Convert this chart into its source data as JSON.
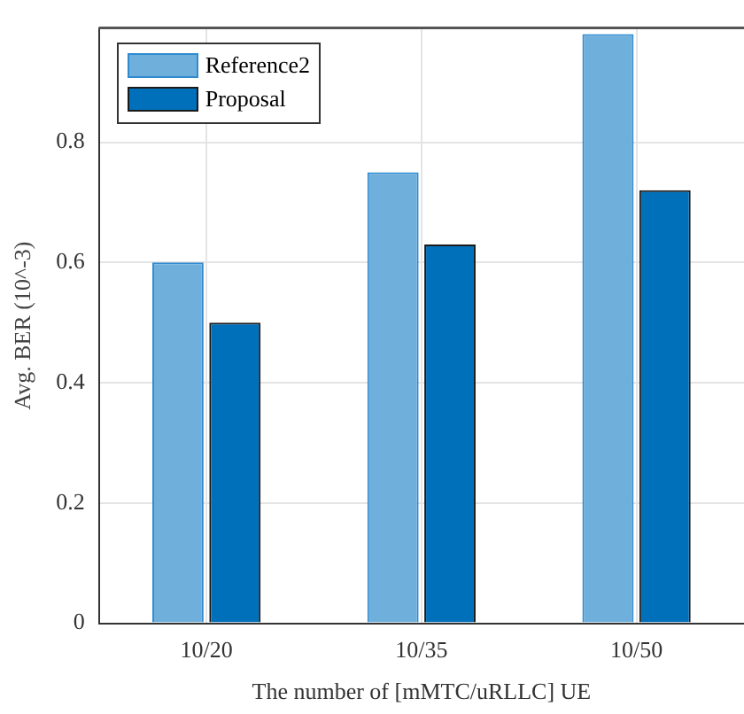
{
  "chart_data": {
    "type": "bar",
    "xlabel": "The number of [mMTC/uRLLC] UE",
    "ylabel": "Avg. BER (10^-3)",
    "categories": [
      "10/20",
      "10/35",
      "10/50"
    ],
    "series": [
      {
        "name": "Reference2",
        "color": "#6fafdc",
        "values": [
          0.6,
          0.75,
          0.98
        ]
      },
      {
        "name": "Proposal",
        "color": "#0070ba",
        "values": [
          0.5,
          0.63,
          0.72
        ]
      }
    ],
    "ylim": [
      0,
      0.99
    ],
    "yticks": [
      0,
      0.2,
      0.4,
      0.6,
      0.8
    ],
    "grid": true,
    "legend": "top left"
  }
}
